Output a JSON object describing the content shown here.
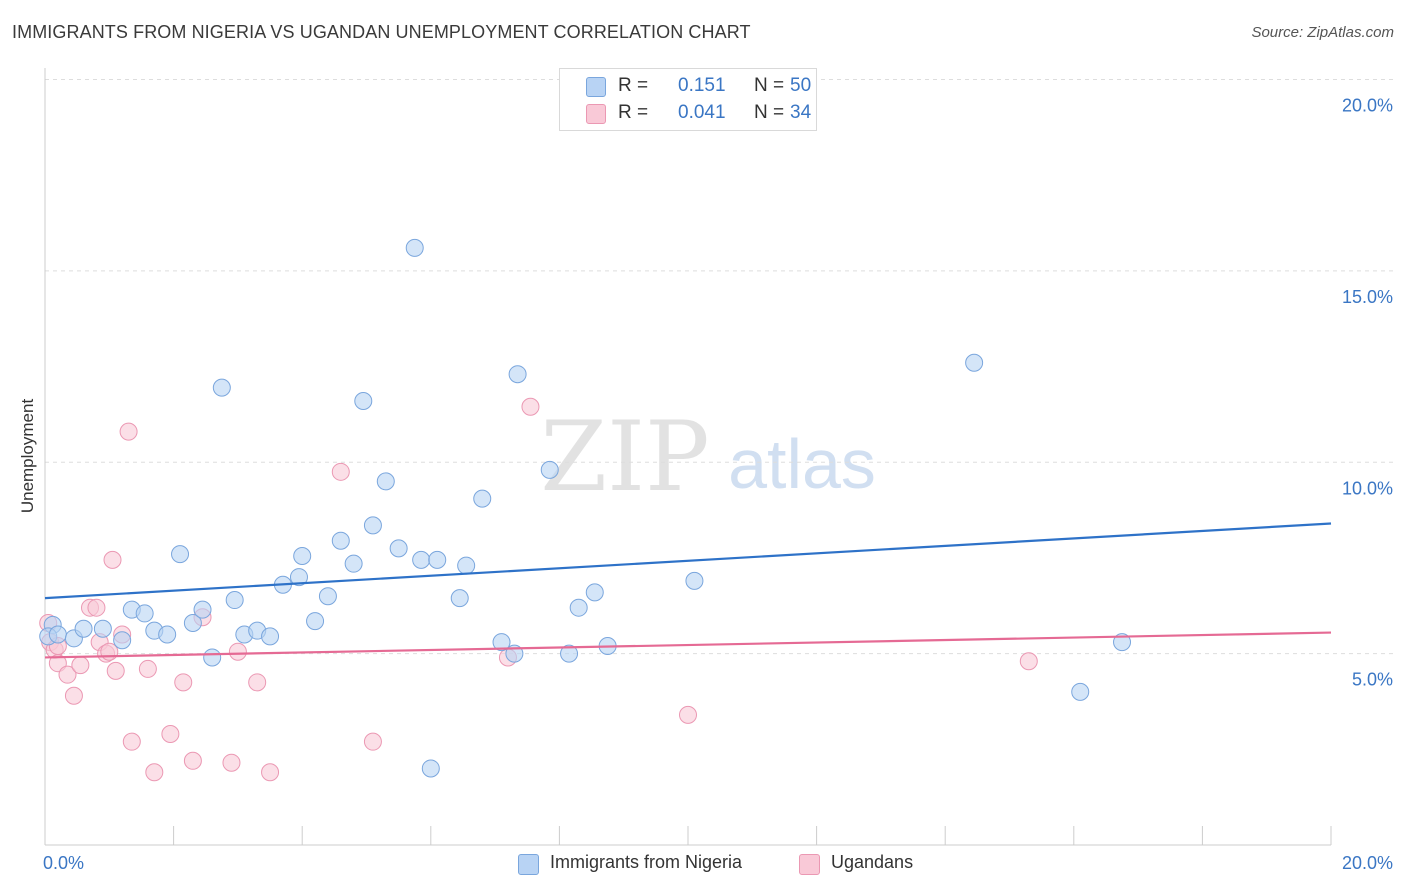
{
  "title": "IMMIGRANTS FROM NIGERIA VS UGANDAN UNEMPLOYMENT CORRELATION CHART",
  "source": "Source: ZipAtlas.com",
  "watermark": {
    "zip": "ZIP",
    "atlas": "atlas"
  },
  "legend_top": {
    "rows": [
      {
        "r_label": "R =",
        "r_value": "0.151",
        "n_label": "N =",
        "n_value": "50"
      },
      {
        "r_label": "R =",
        "r_value": "0.041",
        "n_label": "N =",
        "n_value": "34"
      }
    ]
  },
  "legend_bottom": {
    "items": [
      {
        "label": "Immigrants from Nigeria"
      },
      {
        "label": "Ugandans"
      }
    ]
  },
  "colors": {
    "blue_fill": "#b8d3f4",
    "blue_stroke": "#7aa6dd",
    "blue_line": "#2e72c8",
    "pink_fill": "#f9c9d7",
    "pink_stroke": "#eb98b3",
    "pink_line": "#e56a94",
    "axis_text": "#3a76c4",
    "grid": "#dddddd"
  },
  "chart_data": {
    "type": "scatter",
    "title": "IMMIGRANTS FROM NIGERIA VS UGANDAN UNEMPLOYMENT CORRELATION CHART",
    "xlabel": "",
    "ylabel": "Unemployment",
    "xlim": [
      0,
      20
    ],
    "ylim": [
      0,
      20
    ],
    "x_tick_labels": [
      "0.0%",
      "20.0%"
    ],
    "y_ticks": [
      5,
      10,
      15,
      20
    ],
    "y_tick_labels": [
      "5.0%",
      "10.0%",
      "15.0%",
      "20.0%"
    ],
    "grid": true,
    "series": [
      {
        "name": "Immigrants from Nigeria",
        "r": 0.151,
        "n": 50,
        "trend": {
          "x": [
            0,
            20
          ],
          "y": [
            6.45,
            8.4
          ]
        },
        "points": [
          [
            0.12,
            5.75
          ],
          [
            0.05,
            5.45
          ],
          [
            0.2,
            5.5
          ],
          [
            0.45,
            5.4
          ],
          [
            0.6,
            5.65
          ],
          [
            0.9,
            5.65
          ],
          [
            1.2,
            5.35
          ],
          [
            1.35,
            6.15
          ],
          [
            1.55,
            6.05
          ],
          [
            1.7,
            5.6
          ],
          [
            1.9,
            5.5
          ],
          [
            2.1,
            7.6
          ],
          [
            2.3,
            5.8
          ],
          [
            2.45,
            6.15
          ],
          [
            2.6,
            4.9
          ],
          [
            2.75,
            11.95
          ],
          [
            2.95,
            6.4
          ],
          [
            3.1,
            5.5
          ],
          [
            3.3,
            5.6
          ],
          [
            3.5,
            5.45
          ],
          [
            3.7,
            6.8
          ],
          [
            3.95,
            7.0
          ],
          [
            4.0,
            7.55
          ],
          [
            4.2,
            5.85
          ],
          [
            4.4,
            6.5
          ],
          [
            4.6,
            7.95
          ],
          [
            4.8,
            7.35
          ],
          [
            4.95,
            11.6
          ],
          [
            5.1,
            8.35
          ],
          [
            5.3,
            9.5
          ],
          [
            5.5,
            7.75
          ],
          [
            5.75,
            15.6
          ],
          [
            5.85,
            7.45
          ],
          [
            6.0,
            2.0
          ],
          [
            6.1,
            7.45
          ],
          [
            6.45,
            6.45
          ],
          [
            6.55,
            7.3
          ],
          [
            6.8,
            9.05
          ],
          [
            7.1,
            5.3
          ],
          [
            7.3,
            5.0
          ],
          [
            7.35,
            12.3
          ],
          [
            7.85,
            9.8
          ],
          [
            8.15,
            5.0
          ],
          [
            8.3,
            6.2
          ],
          [
            8.55,
            6.6
          ],
          [
            8.75,
            5.2
          ],
          [
            10.1,
            6.9
          ],
          [
            14.45,
            12.6
          ],
          [
            16.1,
            4.0
          ],
          [
            16.75,
            5.3
          ]
        ]
      },
      {
        "name": "Ugandans",
        "r": 0.041,
        "n": 34,
        "trend": {
          "x": [
            0,
            20
          ],
          "y": [
            4.9,
            5.55
          ]
        },
        "points": [
          [
            0.05,
            5.8
          ],
          [
            0.08,
            5.3
          ],
          [
            0.15,
            5.1
          ],
          [
            0.2,
            4.75
          ],
          [
            0.35,
            4.45
          ],
          [
            0.45,
            3.9
          ],
          [
            0.55,
            4.7
          ],
          [
            0.7,
            6.2
          ],
          [
            0.8,
            6.2
          ],
          [
            0.85,
            5.3
          ],
          [
            0.95,
            5.0
          ],
          [
            1.0,
            5.05
          ],
          [
            1.05,
            7.45
          ],
          [
            1.1,
            4.55
          ],
          [
            1.2,
            5.5
          ],
          [
            1.3,
            10.8
          ],
          [
            1.35,
            2.7
          ],
          [
            1.6,
            4.6
          ],
          [
            1.7,
            1.9
          ],
          [
            1.95,
            2.9
          ],
          [
            2.15,
            4.25
          ],
          [
            2.3,
            2.2
          ],
          [
            2.45,
            5.95
          ],
          [
            2.9,
            2.15
          ],
          [
            3.0,
            5.05
          ],
          [
            3.3,
            4.25
          ],
          [
            3.5,
            1.9
          ],
          [
            4.6,
            9.75
          ],
          [
            5.1,
            2.7
          ],
          [
            7.2,
            4.9
          ],
          [
            7.55,
            11.45
          ],
          [
            10.0,
            3.4
          ],
          [
            15.3,
            4.8
          ],
          [
            0.2,
            5.2
          ]
        ]
      }
    ]
  }
}
